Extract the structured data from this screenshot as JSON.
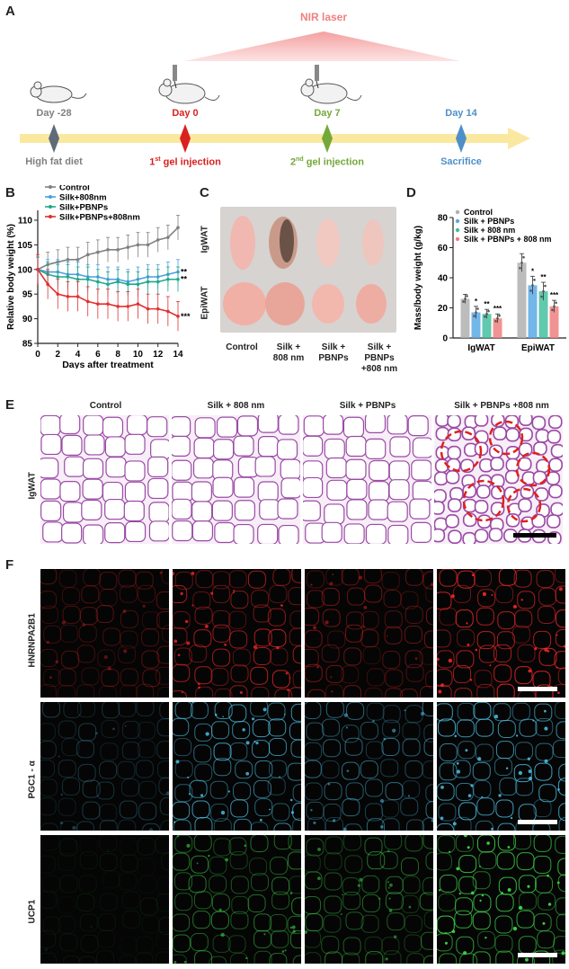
{
  "panels": {
    "A": "A",
    "B": "B",
    "C": "C",
    "D": "D",
    "E": "E",
    "F": "F"
  },
  "timeline": {
    "laser": "NIR laser",
    "days": [
      {
        "day": "Day -28",
        "event": "High fat diet",
        "color": "#7f7f7f"
      },
      {
        "day": "Day 0",
        "event": "1st gel injection",
        "color": "#d9211f"
      },
      {
        "day": "Day 7",
        "event": "2nd gel injection",
        "color": "#74a83a"
      },
      {
        "day": "Day 14",
        "event": "Sacrifice",
        "color": "#4e8fc9"
      }
    ],
    "event1_num": "1",
    "event1_sup": "st",
    "event1_rest": " gel injection",
    "event2_num": "2",
    "event2_sup": "nd",
    "event2_rest": " gel injection"
  },
  "panelC": {
    "rows": [
      "IgWAT",
      "EpiWAT"
    ],
    "cols": [
      [
        "Control"
      ],
      [
        "Silk +",
        "808 nm"
      ],
      [
        "Silk +",
        "PBNPs"
      ],
      [
        "Silk +",
        "PBNPs",
        "+808 nm"
      ]
    ]
  },
  "panelE": {
    "cols": [
      "Control",
      "Silk + 808 nm",
      "Silk + PBNPs",
      "Silk + PBNPs +808 nm"
    ],
    "row": "IgWAT"
  },
  "panelF": {
    "rows": [
      "HNRNPA2B1",
      "PGC1 - α",
      "UCP1"
    ],
    "colors": [
      "#ff2a2a",
      "#4fc3e8",
      "#3fd44a"
    ]
  },
  "chart_data": [
    {
      "type": "line",
      "xlabel": "Days after treatment",
      "ylabel": "Relative body weight (%)",
      "ylim": [
        85,
        112
      ],
      "xlim": [
        0,
        14
      ],
      "xticks": [
        0,
        2,
        4,
        6,
        8,
        10,
        12,
        14
      ],
      "yticks": [
        85,
        90,
        95,
        100,
        105,
        110
      ],
      "x": [
        0,
        1,
        2,
        3,
        4,
        5,
        6,
        7,
        8,
        9,
        10,
        11,
        12,
        13,
        14
      ],
      "series": [
        {
          "name": "Control",
          "color": "#808080",
          "values": [
            100,
            101,
            101.5,
            102,
            102,
            103,
            103.5,
            104,
            104,
            104.5,
            105,
            105,
            106,
            106.5,
            108.5
          ],
          "err": 2.5,
          "sig": ""
        },
        {
          "name": "Silk+808nm",
          "color": "#4a9ee0",
          "values": [
            100,
            99.5,
            99.5,
            99,
            99,
            98.5,
            98.5,
            98,
            98,
            97.5,
            98,
            98.5,
            98.5,
            99,
            99.5
          ],
          "err": 2.5,
          "sig": "**"
        },
        {
          "name": "Silk+PBNPs",
          "color": "#1fa88a",
          "values": [
            100,
            99,
            98.5,
            98.5,
            98,
            98,
            97.5,
            97,
            97.5,
            97,
            97,
            97.5,
            97.5,
            98,
            98
          ],
          "err": 2.5,
          "sig": "**"
        },
        {
          "name": "Silk+PBNPs+808nm",
          "color": "#e03030",
          "values": [
            100,
            97,
            95,
            94.5,
            94.5,
            93.5,
            93,
            93,
            92.5,
            92.5,
            93,
            92,
            92,
            91.5,
            90.5
          ],
          "err": 3,
          "sig": "***"
        }
      ]
    },
    {
      "type": "bar",
      "ylabel": "Mass/body weight (g/kg)",
      "ylim": [
        0,
        80
      ],
      "yticks": [
        0,
        20,
        40,
        60,
        80
      ],
      "categories": [
        "IgWAT",
        "EpiWAT"
      ],
      "series": [
        {
          "name": "Control",
          "color": "#b0b0b0",
          "values": [
            26,
            50
          ],
          "err": [
            3,
            6
          ],
          "sig": [
            "",
            ""
          ]
        },
        {
          "name": "Silk + PBNPs",
          "color": "#5aa9e6",
          "values": [
            17,
            35
          ],
          "err": [
            4,
            6
          ],
          "sig": [
            "*",
            "*"
          ]
        },
        {
          "name": "Silk + 808 nm",
          "color": "#44c0a0",
          "values": [
            16,
            31
          ],
          "err": [
            3,
            6
          ],
          "sig": [
            "**",
            "**"
          ]
        },
        {
          "name": "Silk + PBNPs + 808 nm",
          "color": "#f08080",
          "values": [
            13,
            21
          ],
          "err": [
            3,
            4
          ],
          "sig": [
            "***",
            "***"
          ]
        }
      ]
    }
  ]
}
